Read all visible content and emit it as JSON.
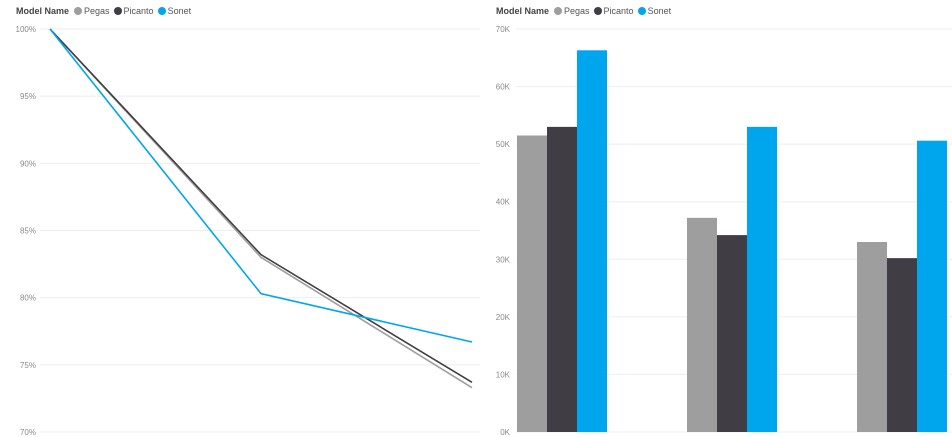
{
  "chart_data": [
    {
      "type": "line",
      "legend_title": "Model Name",
      "x": [
        1,
        2,
        3
      ],
      "ylim": [
        70,
        100
      ],
      "yticks": [
        "100%",
        "95%",
        "90%",
        "85%",
        "80%",
        "75%",
        "70%"
      ],
      "ytick_values": [
        100,
        95,
        90,
        85,
        80,
        75,
        70
      ],
      "grid": true,
      "series": [
        {
          "name": "Pegas",
          "color": "#9e9e9e",
          "values": [
            100,
            83.0,
            73.3
          ]
        },
        {
          "name": "Picanto",
          "color": "#403d44",
          "values": [
            100,
            83.2,
            73.7
          ]
        },
        {
          "name": "Sonet",
          "color": "#00a6ed",
          "values": [
            100,
            80.3,
            76.7
          ]
        }
      ]
    },
    {
      "type": "bar",
      "legend_title": "Model Name",
      "categories": [
        "",
        "",
        ""
      ],
      "ylim": [
        0,
        70000
      ],
      "yticks": [
        "70K",
        "60K",
        "50K",
        "40K",
        "30K",
        "20K",
        "10K",
        "0K"
      ],
      "ytick_values": [
        70000,
        60000,
        50000,
        40000,
        30000,
        20000,
        10000,
        0
      ],
      "grid": true,
      "series": [
        {
          "name": "Pegas",
          "color": "#9e9e9e",
          "values": [
            51500,
            37200,
            33000
          ]
        },
        {
          "name": "Picanto",
          "color": "#403d44",
          "values": [
            53000,
            34200,
            30200
          ]
        },
        {
          "name": "Sonet",
          "color": "#00a6ed",
          "values": [
            66300,
            53000,
            50600
          ]
        }
      ]
    }
  ]
}
